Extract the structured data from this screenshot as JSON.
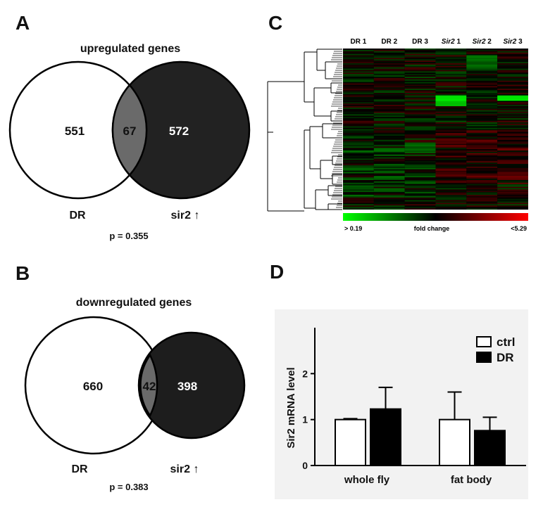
{
  "panels": {
    "A": {
      "letter": "A",
      "title": "upregulated genes",
      "left_only": "551",
      "overlap": "67",
      "right_only": "572",
      "left_label": "DR",
      "right_label": "sir2 ↑",
      "pvalue": "p = 0.355"
    },
    "B": {
      "letter": "B",
      "title": "downregulated genes",
      "left_only": "660",
      "overlap": "42",
      "right_only": "398",
      "left_label": "DR",
      "right_label": "sir2 ↑",
      "pvalue": "p = 0.383"
    },
    "C": {
      "letter": "C",
      "columns": [
        {
          "prefix": "DR",
          "num": " 1",
          "italic": false
        },
        {
          "prefix": "DR",
          "num": " 2",
          "italic": false
        },
        {
          "prefix": "DR",
          "num": " 3",
          "italic": false
        },
        {
          "prefix": "Sir2",
          "num": " 1",
          "italic": true
        },
        {
          "prefix": "Sir2",
          "num": " 2",
          "italic": true
        },
        {
          "prefix": "Sir2",
          "num": " 3",
          "italic": true
        }
      ],
      "scale_low": "> 0.19",
      "scale_mid": "fold change",
      "scale_high": "<5.29",
      "colors": {
        "low": "#00ff00",
        "mid": "#000000",
        "high": "#ff0000"
      }
    },
    "D": {
      "letter": "D"
    }
  },
  "chart_data": {
    "type": "bar",
    "title": "",
    "ylabel": "Sir2 mRNA level",
    "xlabel": "",
    "categories": [
      "whole fly",
      "fat body"
    ],
    "ylim": [
      0,
      3
    ],
    "yticks": [
      "0",
      "1",
      "2"
    ],
    "series": [
      {
        "name": "ctrl",
        "color": "#ffffff",
        "values": [
          1.0,
          1.0
        ],
        "errors": [
          0.02,
          0.6
        ]
      },
      {
        "name": "DR",
        "color": "#000000",
        "values": [
          1.23,
          0.76
        ],
        "errors": [
          0.47,
          0.29
        ]
      }
    ],
    "legend": "top-right"
  }
}
